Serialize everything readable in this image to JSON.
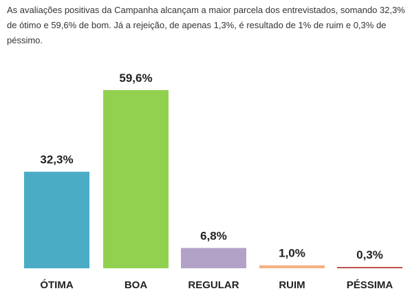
{
  "intro_text": "As avaliações positivas da Campanha alcançam a maior parcela dos entrevistados, somando 32,3% de ótimo e 59,6% de bom. Já a rejeição, de apenas 1,3%, é resultado de 1% de ruim e 0,3% de péssimo.",
  "chart_data": {
    "type": "bar",
    "categories": [
      "ÓTIMA",
      "BOA",
      "REGULAR",
      "RUIM",
      "PÉSSIMA"
    ],
    "values": [
      32.3,
      59.6,
      6.8,
      1.0,
      0.3
    ],
    "value_labels": [
      "32,3%",
      "59,6%",
      "6,8%",
      "1,0%",
      "0,3%"
    ],
    "colors": [
      "#4bacc6",
      "#92d050",
      "#b3a2c7",
      "#f4b183",
      "#c0504d"
    ],
    "title": "",
    "xlabel": "",
    "ylabel": "",
    "ylim": [
      0,
      59.6
    ],
    "grid": false,
    "legend": "none"
  }
}
